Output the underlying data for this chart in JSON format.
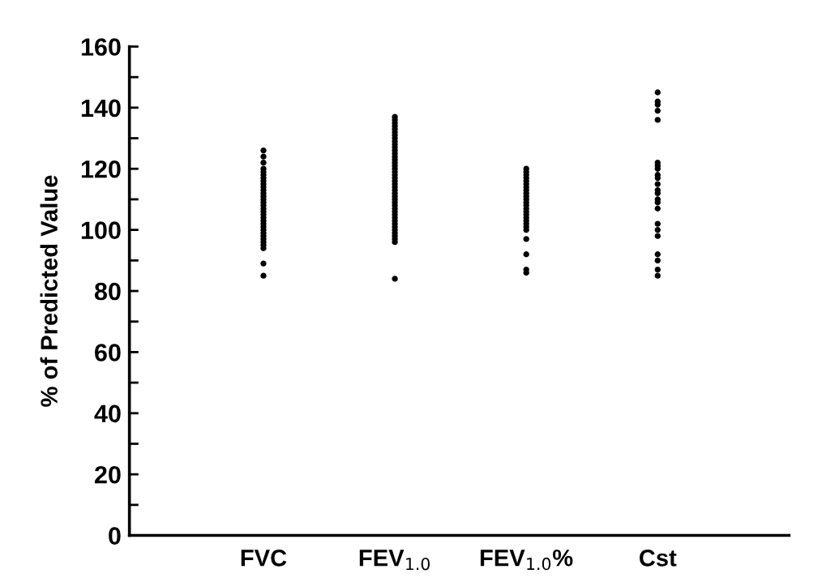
{
  "chart_data": {
    "type": "scatter",
    "ylabel": "% of Predicted Value",
    "categories": [
      "FVC",
      "FEV$_{1.0}$",
      "FEV$_{1.0}$%",
      "Cst"
    ],
    "ylim": [
      0,
      160
    ],
    "yticks": [
      0,
      {
        "value": 10,
        "label": null
      },
      20,
      {
        "value": 30,
        "label": null
      },
      40,
      {
        "value": 50,
        "label": null
      },
      60,
      {
        "value": 70,
        "label": null
      },
      80,
      {
        "value": 90,
        "label": null
      },
      100,
      {
        "value": 110,
        "label": null
      },
      120,
      {
        "value": 130,
        "label": null
      },
      140,
      {
        "value": 150,
        "label": null
      },
      160
    ],
    "marker": "circle",
    "grid": false,
    "legend": false,
    "series": [
      {
        "color": "#000000",
        "x": [
          "FVC",
          "FVC",
          "FVC",
          "FVC",
          "FVC",
          "FVC",
          "FVC",
          "FVC",
          "FVC",
          "FVC",
          "FVC",
          "FVC",
          "FVC",
          "FVC",
          "FVC",
          "FVC",
          "FVC",
          "FVC",
          "FVC",
          "FVC",
          "FVC",
          "FVC",
          "FVC",
          "FVC",
          "FVC",
          "FVC",
          "FVC",
          "FVC",
          "FVC",
          "FVC",
          "FVC",
          "FVC"
        ],
        "values": [
          126,
          124,
          122,
          120,
          119,
          118,
          117,
          116,
          115,
          114,
          113,
          112,
          111,
          110,
          109,
          108,
          107,
          106,
          105,
          104,
          103,
          102,
          101,
          100,
          99,
          98,
          97,
          96,
          95,
          94,
          89,
          85
        ]
      },
      {
        "color": "#000000",
        "x": [
          "FEV$_{1.0}$",
          "FEV$_{1.0}$",
          "FEV$_{1.0}$",
          "FEV$_{1.0}$",
          "FEV$_{1.0}$",
          "FEV$_{1.0}$",
          "FEV$_{1.0}$",
          "FEV$_{1.0}$",
          "FEV$_{1.0}$",
          "FEV$_{1.0}$",
          "FEV$_{1.0}$",
          "FEV$_{1.0}$",
          "FEV$_{1.0}$",
          "FEV$_{1.0}$",
          "FEV$_{1.0}$",
          "FEV$_{1.0}$",
          "FEV$_{1.0}$",
          "FEV$_{1.0}$",
          "FEV$_{1.0}$",
          "FEV$_{1.0}$",
          "FEV$_{1.0}$",
          "FEV$_{1.0}$",
          "FEV$_{1.0}$",
          "FEV$_{1.0}$",
          "FEV$_{1.0}$",
          "FEV$_{1.0}$",
          "FEV$_{1.0}$",
          "FEV$_{1.0}$",
          "FEV$_{1.0}$",
          "FEV$_{1.0}$",
          "FEV$_{1.0}$",
          "FEV$_{1.0}$",
          "FEV$_{1.0}$",
          "FEV$_{1.0}$",
          "FEV$_{1.0}$",
          "FEV$_{1.0}$",
          "FEV$_{1.0}$",
          "FEV$_{1.0}$",
          "FEV$_{1.0}$",
          "FEV$_{1.0}$",
          "FEV$_{1.0}$",
          "FEV$_{1.0}$",
          "FEV$_{1.0}$"
        ],
        "values": [
          137,
          136,
          135,
          134,
          133,
          132,
          131,
          130,
          129,
          128,
          127,
          126,
          125,
          124,
          123,
          122,
          121,
          120,
          119,
          118,
          117,
          116,
          115,
          114,
          113,
          112,
          111,
          110,
          109,
          108,
          107,
          106,
          105,
          104,
          103,
          102,
          101,
          100,
          99,
          98,
          97,
          96,
          84
        ]
      },
      {
        "color": "#000000",
        "x": [
          "FEV$_{1.0}$%",
          "FEV$_{1.0}$%",
          "FEV$_{1.0}$%",
          "FEV$_{1.0}$%",
          "FEV$_{1.0}$%",
          "FEV$_{1.0}$%",
          "FEV$_{1.0}$%",
          "FEV$_{1.0}$%",
          "FEV$_{1.0}$%",
          "FEV$_{1.0}$%",
          "FEV$_{1.0}$%",
          "FEV$_{1.0}$%",
          "FEV$_{1.0}$%",
          "FEV$_{1.0}$%",
          "FEV$_{1.0}$%",
          "FEV$_{1.0}$%",
          "FEV$_{1.0}$%",
          "FEV$_{1.0}$%",
          "FEV$_{1.0}$%",
          "FEV$_{1.0}$%",
          "FEV$_{1.0}$%",
          "FEV$_{1.0}$%",
          "FEV$_{1.0}$%",
          "FEV$_{1.0}$%",
          "FEV$_{1.0}$%"
        ],
        "values": [
          120,
          119,
          118,
          117,
          116,
          115,
          114,
          113,
          112,
          111,
          110,
          109,
          108,
          107,
          106,
          105,
          104,
          103,
          102,
          101,
          100,
          97,
          92,
          87,
          86
        ]
      },
      {
        "color": "#000000",
        "x": [
          "Cst",
          "Cst",
          "Cst",
          "Cst",
          "Cst",
          "Cst",
          "Cst",
          "Cst",
          "Cst",
          "Cst",
          "Cst",
          "Cst",
          "Cst",
          "Cst",
          "Cst",
          "Cst",
          "Cst",
          "Cst",
          "Cst",
          "Cst",
          "Cst",
          "Cst",
          "Cst"
        ],
        "values": [
          145,
          142,
          141,
          139,
          136,
          122,
          121,
          120,
          118,
          117,
          115,
          113,
          112,
          110,
          109,
          107,
          102,
          100,
          98,
          92,
          90,
          87,
          85
        ]
      }
    ]
  }
}
